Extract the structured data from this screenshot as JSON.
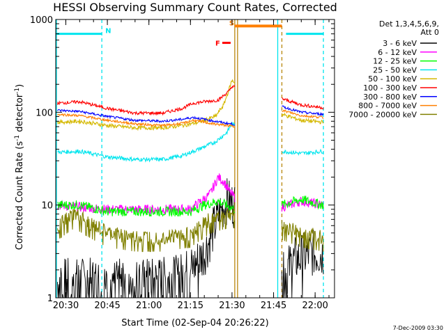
{
  "chart_data": {
    "type": "line",
    "title": "HESSI Observing Summary Count Rates, Corrected",
    "xlabel": "Start Time (02-Sep-04 20:26:22)",
    "ylabel_main": "Corrected Count Rate (s",
    "ylabel_sup1": "-1",
    "ylabel_mid": " detector",
    "ylabel_sup2": "-1",
    "ylabel_end": ")",
    "y_scale": "log",
    "ylim": [
      1,
      1000
    ],
    "xlim": [
      "20:26:22",
      "22:07:00"
    ],
    "x_ticks": [
      "20:30",
      "20:45",
      "21:00",
      "21:15",
      "21:30",
      "21:45",
      "22:00"
    ],
    "y_ticks": [
      "1",
      "10",
      "100",
      "1000"
    ],
    "legend_header": [
      "Det 1,3,4,5,6,9,",
      "Att 0"
    ],
    "legend_position": "right",
    "timestamp": "7-Dec-2009 03:30",
    "markers": {
      "N_label": "N",
      "S_label": "S",
      "F_label": "F",
      "N_intervals": [
        [
          "20:26:22",
          "20:43:00"
        ],
        [
          "21:49:30",
          "22:03:00"
        ]
      ],
      "S_interval": [
        "21:31:00",
        "21:48:00"
      ],
      "F_interval": [
        "21:26:30",
        "21:29:30"
      ],
      "colors": {
        "N": "#00e5ee",
        "S": "#ff7f00",
        "F": "#ff0000"
      }
    },
    "vertical_lines": [
      {
        "time": "20:43:00",
        "color": "#00e5ee",
        "style": "dashed"
      },
      {
        "time": "21:31:00",
        "color": "#b8860b",
        "style": "solid"
      },
      {
        "time": "21:32:00",
        "color": "#b8860b",
        "style": "solid"
      },
      {
        "time": "21:46:30",
        "color": "#00e5ee",
        "style": "solid"
      },
      {
        "time": "21:48:00",
        "color": "#b8860b",
        "style": "dashed"
      },
      {
        "time": "22:03:00",
        "color": "#00e5ee",
        "style": "dashed"
      }
    ],
    "gap": [
      "21:31:00",
      "21:48:00"
    ],
    "series": [
      {
        "name": "3 - 6 keV",
        "color": "#000000",
        "points": [
          [
            "20:27",
            1.5
          ],
          [
            "20:40",
            1.5
          ],
          [
            "20:50",
            1.5
          ],
          [
            "21:00",
            1.5
          ],
          [
            "21:10",
            1.6
          ],
          [
            "21:15",
            2.0
          ],
          [
            "21:20",
            3.0
          ],
          [
            "21:25",
            7.5
          ],
          [
            "21:28",
            11
          ],
          [
            "21:31",
            10
          ],
          [
            "21:48",
            1.6
          ],
          [
            "21:52",
            2.5
          ],
          [
            "21:58",
            3
          ],
          [
            "22:03",
            3
          ]
        ]
      },
      {
        "name": "6 - 12 keV",
        "color": "#ff00ff",
        "points": [
          [
            "20:27",
            10
          ],
          [
            "20:35",
            9.5
          ],
          [
            "20:45",
            9
          ],
          [
            "20:55",
            9
          ],
          [
            "21:05",
            9
          ],
          [
            "21:15",
            9
          ],
          [
            "21:22",
            13
          ],
          [
            "21:25",
            20
          ],
          [
            "21:27",
            18
          ],
          [
            "21:29",
            14
          ],
          [
            "21:31",
            12
          ],
          [
            "21:48",
            9.5
          ],
          [
            "21:55",
            11
          ],
          [
            "22:03",
            10
          ]
        ]
      },
      {
        "name": "12 - 25 keV",
        "color": "#00ff00",
        "points": [
          [
            "20:27",
            10
          ],
          [
            "20:35",
            10
          ],
          [
            "20:45",
            8.5
          ],
          [
            "20:55",
            8.5
          ],
          [
            "21:05",
            8.5
          ],
          [
            "21:15",
            8.5
          ],
          [
            "21:20",
            10
          ],
          [
            "21:25",
            11
          ],
          [
            "21:31",
            9
          ],
          [
            "21:48",
            10
          ],
          [
            "21:55",
            11.5
          ],
          [
            "22:03",
            10
          ]
        ]
      },
      {
        "name": "25 - 50 keV",
        "color": "#00e5ee",
        "points": [
          [
            "20:27",
            37
          ],
          [
            "20:35",
            38
          ],
          [
            "20:45",
            33
          ],
          [
            "20:55",
            31
          ],
          [
            "21:05",
            31
          ],
          [
            "21:12",
            34
          ],
          [
            "21:18",
            40
          ],
          [
            "21:24",
            48
          ],
          [
            "21:28",
            60
          ],
          [
            "21:30",
            75
          ],
          [
            "21:48",
            38
          ],
          [
            "21:55",
            36
          ],
          [
            "22:03",
            38
          ]
        ]
      },
      {
        "name": "50 - 100 keV",
        "color": "#d4b800",
        "points": [
          [
            "20:27",
            78
          ],
          [
            "20:35",
            80
          ],
          [
            "20:45",
            72
          ],
          [
            "20:55",
            68
          ],
          [
            "21:05",
            68
          ],
          [
            "21:12",
            72
          ],
          [
            "21:18",
            78
          ],
          [
            "21:24",
            90
          ],
          [
            "21:27",
            120
          ],
          [
            "21:30",
            220
          ],
          [
            "21:48",
            95
          ],
          [
            "21:55",
            82
          ],
          [
            "22:03",
            78
          ]
        ]
      },
      {
        "name": "100 - 300 keV",
        "color": "#ff0000",
        "points": [
          [
            "20:27",
            125
          ],
          [
            "20:35",
            130
          ],
          [
            "20:45",
            110
          ],
          [
            "20:55",
            98
          ],
          [
            "21:05",
            98
          ],
          [
            "21:12",
            110
          ],
          [
            "21:16",
            125
          ],
          [
            "21:20",
            130
          ],
          [
            "21:25",
            135
          ],
          [
            "21:29",
            170
          ],
          [
            "21:30",
            190
          ],
          [
            "21:48",
            140
          ],
          [
            "21:55",
            120
          ],
          [
            "22:03",
            112
          ]
        ]
      },
      {
        "name": "300 - 800 keV",
        "color": "#0000ff",
        "points": [
          [
            "20:27",
            105
          ],
          [
            "20:35",
            102
          ],
          [
            "20:45",
            90
          ],
          [
            "20:55",
            82
          ],
          [
            "21:05",
            80
          ],
          [
            "21:12",
            84
          ],
          [
            "21:16",
            88
          ],
          [
            "21:22",
            82
          ],
          [
            "21:28",
            76
          ],
          [
            "21:31",
            74
          ],
          [
            "21:48",
            115
          ],
          [
            "21:55",
            100
          ],
          [
            "22:03",
            95
          ]
        ]
      },
      {
        "name": "800 - 7000 keV",
        "color": "#ff7f00",
        "points": [
          [
            "20:27",
            95
          ],
          [
            "20:35",
            92
          ],
          [
            "20:45",
            82
          ],
          [
            "20:55",
            75
          ],
          [
            "21:05",
            72
          ],
          [
            "21:12",
            76
          ],
          [
            "21:16",
            82
          ],
          [
            "21:22",
            76
          ],
          [
            "21:28",
            72
          ],
          [
            "21:31",
            70
          ],
          [
            "21:48",
            105
          ],
          [
            "21:55",
            92
          ],
          [
            "22:03",
            88
          ]
        ]
      },
      {
        "name": "7000 - 20000 keV",
        "color": "#808000",
        "points": [
          [
            "20:27",
            6
          ],
          [
            "20:33",
            8
          ],
          [
            "20:40",
            6
          ],
          [
            "20:45",
            5
          ],
          [
            "20:55",
            4.5
          ],
          [
            "21:05",
            4.5
          ],
          [
            "21:15",
            5
          ],
          [
            "21:22",
            7
          ],
          [
            "21:28",
            8
          ],
          [
            "21:31",
            8
          ],
          [
            "21:48",
            6
          ],
          [
            "21:55",
            5
          ],
          [
            "22:03",
            4.5
          ]
        ]
      }
    ]
  }
}
